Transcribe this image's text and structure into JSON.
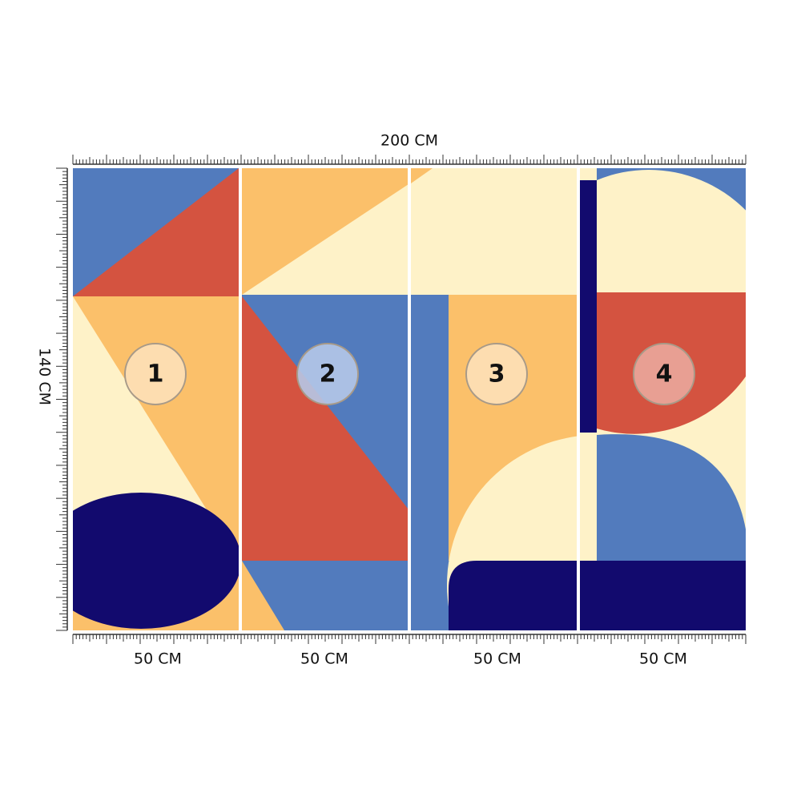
{
  "header": {
    "width_label": "200 CM",
    "height_label": "140 CM"
  },
  "panels": [
    {
      "number": "1",
      "width_label": "50 CM"
    },
    {
      "number": "2",
      "width_label": "50 CM"
    },
    {
      "number": "3",
      "width_label": "50 CM"
    },
    {
      "number": "4",
      "width_label": "50 CM"
    }
  ]
}
